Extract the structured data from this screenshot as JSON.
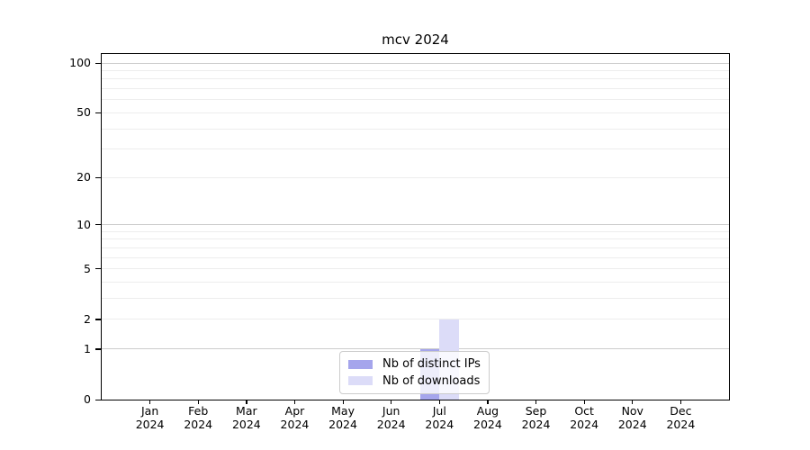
{
  "chart_data": {
    "type": "bar",
    "title": "mcv 2024",
    "categories": [
      "Jan 2024",
      "Feb 2024",
      "Mar 2024",
      "Apr 2024",
      "May 2024",
      "Jun 2024",
      "Jul 2024",
      "Aug 2024",
      "Sep 2024",
      "Oct 2024",
      "Nov 2024",
      "Dec 2024"
    ],
    "series": [
      {
        "name": "Nb of distinct IPs",
        "color": "#a5a5ec",
        "values": [
          0,
          0,
          0,
          0,
          0,
          0,
          1,
          0,
          0,
          0,
          0,
          0
        ]
      },
      {
        "name": "Nb of downloads",
        "color": "#dcdcf8",
        "values": [
          0,
          0,
          0,
          0,
          0,
          0,
          2,
          0,
          0,
          0,
          0,
          0
        ]
      }
    ],
    "xlabel": "",
    "ylabel": "",
    "yscale": "log1p",
    "ylim": [
      0,
      100
    ],
    "y_tick_labels": [
      0,
      1,
      2,
      5,
      10,
      20,
      50,
      100
    ],
    "y_major_grid": [
      1,
      10,
      100
    ],
    "y_minor_grid": [
      2,
      3,
      4,
      5,
      6,
      7,
      8,
      9,
      20,
      30,
      40,
      50,
      60,
      70,
      80,
      90
    ],
    "grid": "on",
    "legend_position": "lower center"
  },
  "colors": {
    "background": "#ffffff",
    "axis": "#000000",
    "major_grid": "#cccccc",
    "minor_grid": "#ededed",
    "legend_border": "#cccccc",
    "text": "#000000"
  }
}
